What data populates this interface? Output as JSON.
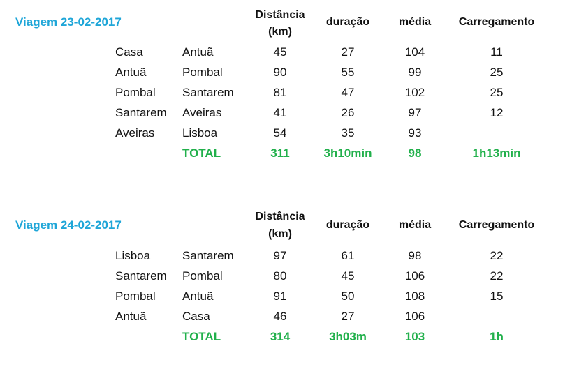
{
  "colors": {
    "title": "#1fa6d8",
    "total": "#21b04b"
  },
  "trips": [
    {
      "title": "Viagem 23-02-2017",
      "headers": {
        "distance": "Distância",
        "distance_unit": "(km)",
        "duration": "duração",
        "average": "média",
        "charging": "Carregamento"
      },
      "rows": [
        {
          "from": "Casa",
          "to": "Antuã",
          "distance": "45",
          "duration": "27",
          "average": "104",
          "charging": "11"
        },
        {
          "from": "Antuã",
          "to": "Pombal",
          "distance": "90",
          "duration": "55",
          "average": "99",
          "charging": "25"
        },
        {
          "from": "Pombal",
          "to": "Santarem",
          "distance": "81",
          "duration": "47",
          "average": "102",
          "charging": "25"
        },
        {
          "from": "Santarem",
          "to": "Aveiras",
          "distance": "41",
          "duration": "26",
          "average": "97",
          "charging": "12"
        },
        {
          "from": "Aveiras",
          "to": "Lisboa",
          "distance": "54",
          "duration": "35",
          "average": "93",
          "charging": ""
        }
      ],
      "total": {
        "label": "TOTAL",
        "distance": "311",
        "duration": "3h10min",
        "average": "98",
        "charging": "1h13min"
      }
    },
    {
      "title": "Viagem 24-02-2017",
      "headers": {
        "distance": "Distância",
        "distance_unit": "(km)",
        "duration": "duração",
        "average": "média",
        "charging": "Carregamento"
      },
      "rows": [
        {
          "from": "Lisboa",
          "to": "Santarem",
          "distance": "97",
          "duration": "61",
          "average": "98",
          "charging": "22"
        },
        {
          "from": "Santarem",
          "to": "Pombal",
          "distance": "80",
          "duration": "45",
          "average": "106",
          "charging": "22"
        },
        {
          "from": "Pombal",
          "to": "Antuã",
          "distance": "91",
          "duration": "50",
          "average": "108",
          "charging": "15"
        },
        {
          "from": "Antuã",
          "to": "Casa",
          "distance": "46",
          "duration": "27",
          "average": "106",
          "charging": ""
        }
      ],
      "total": {
        "label": "TOTAL",
        "distance": "314",
        "duration": "3h03m",
        "average": "103",
        "charging": "1h"
      }
    }
  ]
}
